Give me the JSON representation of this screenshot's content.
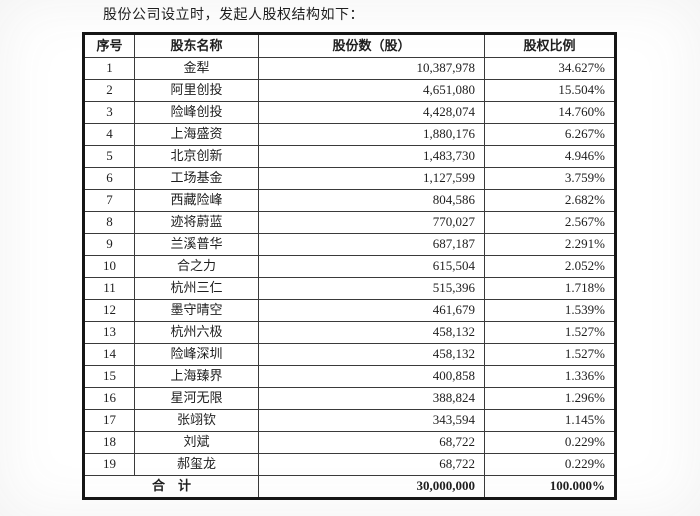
{
  "doc": {
    "title": "股份公司设立时，发起人股权结构如下："
  },
  "table": {
    "headers": [
      "序号",
      "股东名称",
      "股份数（股）",
      "股权比例"
    ],
    "rows": [
      {
        "no": "1",
        "name": "金犁",
        "shares": "10,387,978",
        "ratio": "34.627%"
      },
      {
        "no": "2",
        "name": "阿里创投",
        "shares": "4,651,080",
        "ratio": "15.504%"
      },
      {
        "no": "3",
        "name": "险峰创投",
        "shares": "4,428,074",
        "ratio": "14.760%"
      },
      {
        "no": "4",
        "name": "上海盛资",
        "shares": "1,880,176",
        "ratio": "6.267%"
      },
      {
        "no": "5",
        "name": "北京创新",
        "shares": "1,483,730",
        "ratio": "4.946%"
      },
      {
        "no": "6",
        "name": "工场基金",
        "shares": "1,127,599",
        "ratio": "3.759%"
      },
      {
        "no": "7",
        "name": "西藏险峰",
        "shares": "804,586",
        "ratio": "2.682%"
      },
      {
        "no": "8",
        "name": "迹将蔚蓝",
        "shares": "770,027",
        "ratio": "2.567%"
      },
      {
        "no": "9",
        "name": "兰溪普华",
        "shares": "687,187",
        "ratio": "2.291%"
      },
      {
        "no": "10",
        "name": "合之力",
        "shares": "615,504",
        "ratio": "2.052%"
      },
      {
        "no": "11",
        "name": "杭州三仁",
        "shares": "515,396",
        "ratio": "1.718%"
      },
      {
        "no": "12",
        "name": "墨守晴空",
        "shares": "461,679",
        "ratio": "1.539%"
      },
      {
        "no": "13",
        "name": "杭州六极",
        "shares": "458,132",
        "ratio": "1.527%"
      },
      {
        "no": "14",
        "name": "险峰深圳",
        "shares": "458,132",
        "ratio": "1.527%"
      },
      {
        "no": "15",
        "name": "上海臻界",
        "shares": "400,858",
        "ratio": "1.336%"
      },
      {
        "no": "16",
        "name": "星河无限",
        "shares": "388,824",
        "ratio": "1.296%"
      },
      {
        "no": "17",
        "name": "张翊钦",
        "shares": "343,594",
        "ratio": "1.145%"
      },
      {
        "no": "18",
        "name": "刘斌",
        "shares": "68,722",
        "ratio": "0.229%"
      },
      {
        "no": "19",
        "name": "郝玺龙",
        "shares": "68,722",
        "ratio": "0.229%"
      }
    ],
    "total": {
      "label": "合　计",
      "shares": "30,000,000",
      "ratio": "100.000%"
    }
  }
}
